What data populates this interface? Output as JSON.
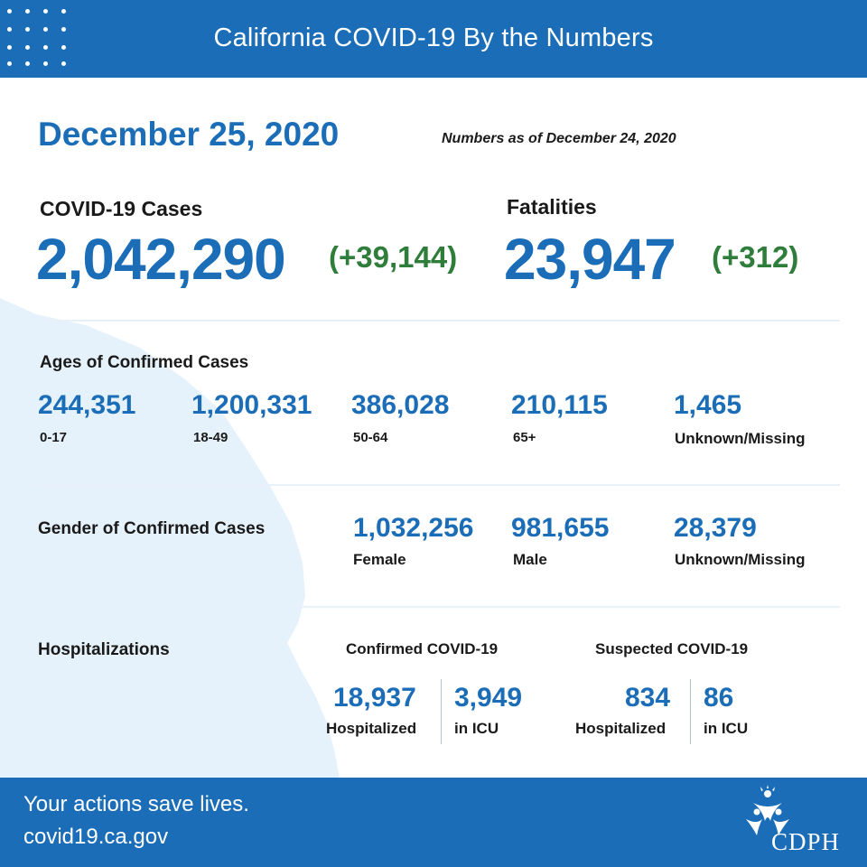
{
  "header": {
    "title": "California COVID-19 By the Numbers"
  },
  "report": {
    "date": "December 25, 2020",
    "as_of": "Numbers as of December 24, 2020"
  },
  "cases": {
    "label": "COVID-19 Cases",
    "total": "2,042,290",
    "delta": "(+39,144)"
  },
  "fatalities": {
    "label": "Fatalities",
    "total": "23,947",
    "delta": "(+312)"
  },
  "ages": {
    "label": "Ages of Confirmed Cases",
    "groups": [
      {
        "value": "244,351",
        "label": "0-17"
      },
      {
        "value": "1,200,331",
        "label": "18-49"
      },
      {
        "value": "386,028",
        "label": "50-64"
      },
      {
        "value": "210,115",
        "label": "65+"
      },
      {
        "value": "1,465",
        "label": "Unknown/Missing"
      }
    ]
  },
  "gender": {
    "label": "Gender of Confirmed Cases",
    "groups": [
      {
        "value": "1,032,256",
        "label": "Female"
      },
      {
        "value": "981,655",
        "label": "Male"
      },
      {
        "value": "28,379",
        "label": "Unknown/Missing"
      }
    ]
  },
  "hospitalizations": {
    "label": "Hospitalizations",
    "confirmed": {
      "title": "Confirmed COVID-19",
      "hospitalized": "18,937",
      "hospitalized_label": "Hospitalized",
      "icu": "3,949",
      "icu_label": "in ICU"
    },
    "suspected": {
      "title": "Suspected COVID-19",
      "hospitalized": "834",
      "hospitalized_label": "Hospitalized",
      "icu": "86",
      "icu_label": "in ICU"
    }
  },
  "footer": {
    "tagline": "Your actions save lives.",
    "url": "covid19.ca.gov",
    "logo_text": "CDPH"
  },
  "colors": {
    "brand_blue": "#1a6db6",
    "delta_green": "#2e7d3a",
    "map_fill": "#e6f2fb"
  }
}
